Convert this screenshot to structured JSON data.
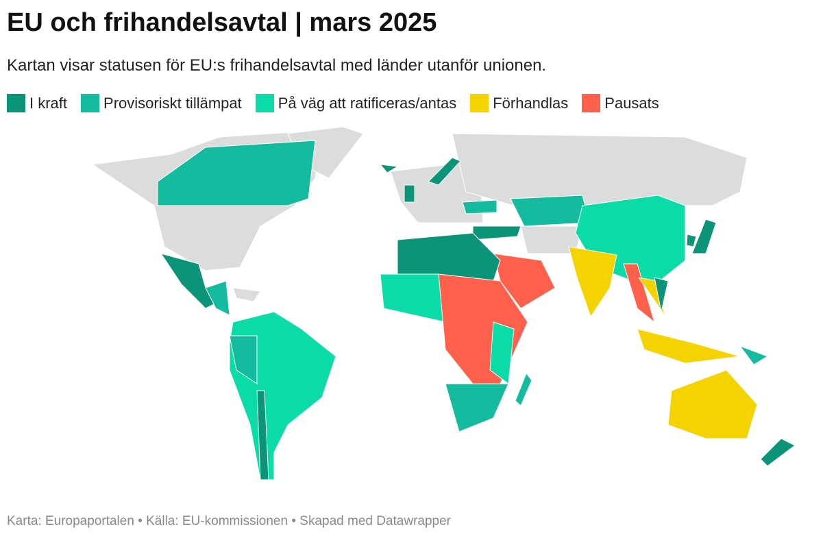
{
  "header": {
    "title": "EU och frihandelsavtal | mars 2025",
    "subtitle": "Kartan visar statusen för EU:s frihandelsavtal med länder utanför unionen."
  },
  "legend": [
    {
      "label": "I kraft",
      "color": "#0b9478"
    },
    {
      "label": "Provisoriskt tillämpat",
      "color": "#15bb9e"
    },
    {
      "label": "På väg att ratificeras/antas",
      "color": "#0bdca7"
    },
    {
      "label": "Förhandlas",
      "color": "#f5d300"
    },
    {
      "label": "Pausats",
      "color": "#ff604c"
    }
  ],
  "footer": "Karta: Europaportalen • Källa: EU-kommissionen • Skapad med Datawrapper"
}
